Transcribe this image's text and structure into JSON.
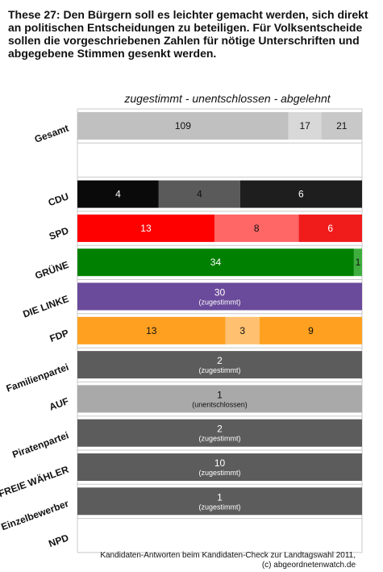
{
  "title": "These 27: Den Bürgern soll es leichter gemacht werden, sich direkt an politischen Entscheidungen zu beteiligen. Für Volksentscheide sollen die vorgeschriebenen Zahlen für nötige Unterschriften und abgegebene Stimmen gesenkt werden.",
  "credit": {
    "line1": "Kandidaten-Antworten beim Kandidaten-Check zur Landtagswahl 2011,",
    "line2": "(c) abgeordnetenwatch.de"
  },
  "chart_data": {
    "type": "bar",
    "orientation": "horizontal",
    "stacked": "100%",
    "subtitle": "zugestimmt - unentschlossen - abgelehnt",
    "grid": true,
    "rows": [
      {
        "label": "Gesamt",
        "segments": [
          {
            "value": 109,
            "text": "109",
            "color": "#c0c0c0",
            "textColor": "#111111"
          },
          {
            "value": 17,
            "text": "17",
            "color": "#d8d8d8",
            "textColor": "#111111"
          },
          {
            "value": 21,
            "text": "21",
            "color": "#c8c8c8",
            "textColor": "#111111"
          }
        ]
      },
      {
        "label": "",
        "segments": []
      },
      {
        "label": "CDU",
        "segments": [
          {
            "value": 4,
            "text": "4",
            "color": "#0a0a0a",
            "textColor": "#ffffff"
          },
          {
            "value": 4,
            "text": "4",
            "color": "#5a5a5a",
            "textColor": "#111111"
          },
          {
            "value": 6,
            "text": "6",
            "color": "#1e1e1e",
            "textColor": "#ffffff"
          }
        ]
      },
      {
        "label": "SPD",
        "segments": [
          {
            "value": 13,
            "text": "13",
            "color": "#ff0000",
            "textColor": "#ffffff"
          },
          {
            "value": 8,
            "text": "8",
            "color": "#ff6666",
            "textColor": "#111111"
          },
          {
            "value": 6,
            "text": "6",
            "color": "#f01c1c",
            "textColor": "#ffffff"
          }
        ]
      },
      {
        "label": "GRÜNE",
        "segments": [
          {
            "value": 34,
            "text": "34",
            "color": "#008000",
            "textColor": "#ffffff"
          },
          {
            "value": 1,
            "text": "1",
            "color": "#3fae3f",
            "textColor": "#111111"
          }
        ]
      },
      {
        "label": "DIE LINKE",
        "segments": [
          {
            "value": 30,
            "text": "30",
            "sublabel": "(zugestimmt)",
            "color": "#6a4a9a",
            "textColor": "#ffffff"
          }
        ]
      },
      {
        "label": "FDP",
        "segments": [
          {
            "value": 13,
            "text": "13",
            "color": "#ffa020",
            "textColor": "#111111"
          },
          {
            "value": 3,
            "text": "3",
            "color": "#ffc070",
            "textColor": "#111111"
          },
          {
            "value": 9,
            "text": "9",
            "color": "#ffa020",
            "textColor": "#111111"
          }
        ]
      },
      {
        "label": "Familienpartei",
        "segments": [
          {
            "value": 2,
            "text": "2",
            "sublabel": "(zugestimmt)",
            "color": "#5c5c5c",
            "textColor": "#ffffff"
          }
        ]
      },
      {
        "label": "AUF",
        "segments": [
          {
            "value": 1,
            "text": "1",
            "sublabel": "(unentschlossen)",
            "color": "#a9a9a9",
            "textColor": "#111111"
          }
        ]
      },
      {
        "label": "Piratenpartei",
        "segments": [
          {
            "value": 2,
            "text": "2",
            "sublabel": "(zugestimmt)",
            "color": "#5c5c5c",
            "textColor": "#ffffff"
          }
        ]
      },
      {
        "label": "FREIE WÄHLER",
        "segments": [
          {
            "value": 10,
            "text": "10",
            "sublabel": "(zugestimmt)",
            "color": "#5c5c5c",
            "textColor": "#ffffff"
          }
        ]
      },
      {
        "label": "Einzelbewerber",
        "segments": [
          {
            "value": 1,
            "text": "1",
            "sublabel": "(zugestimmt)",
            "color": "#5c5c5c",
            "textColor": "#ffffff"
          }
        ]
      },
      {
        "label": "NPD",
        "segments": []
      }
    ]
  }
}
